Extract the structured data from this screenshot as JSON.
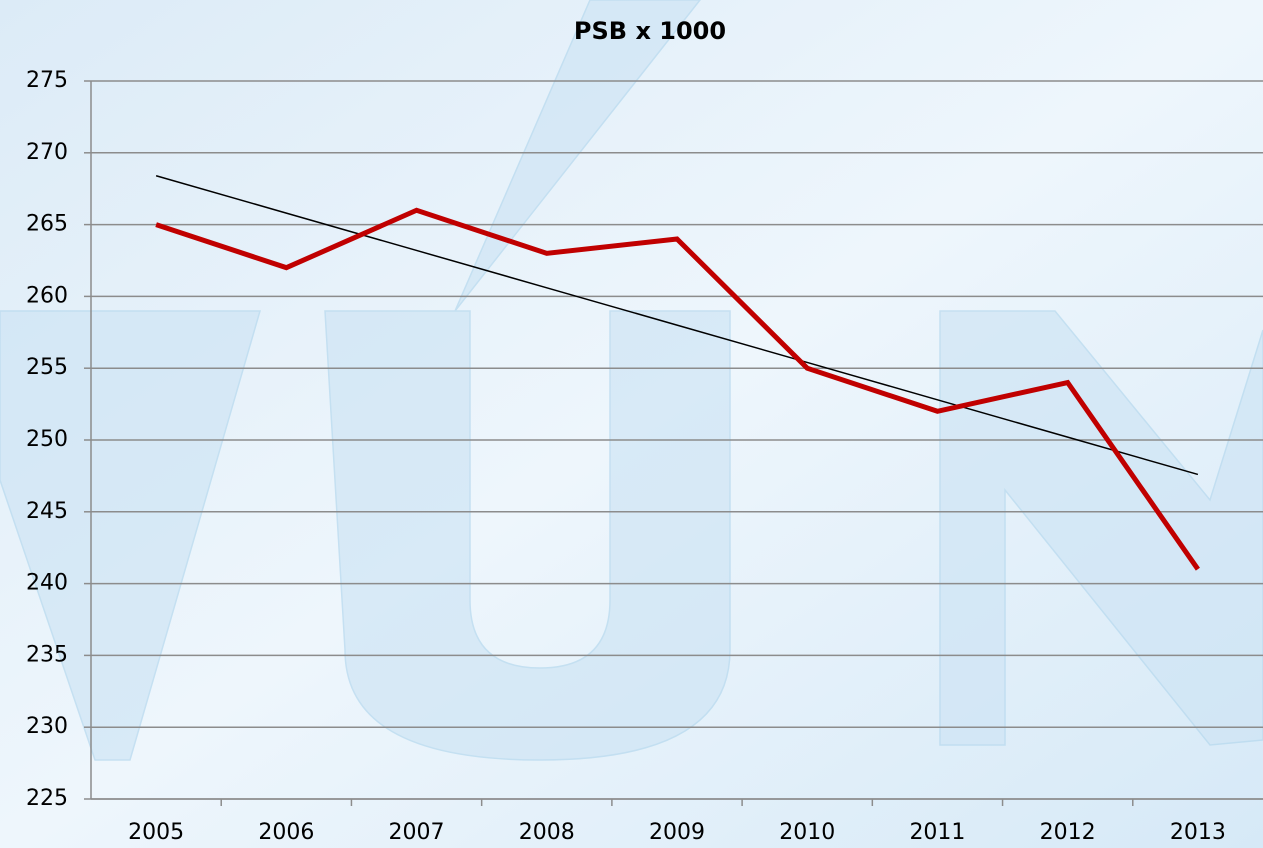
{
  "chart_data": {
    "type": "line",
    "title": "PSB x 1000",
    "categories": [
      "2005",
      "2006",
      "2007",
      "2008",
      "2009",
      "2010",
      "2011",
      "2012",
      "2013"
    ],
    "series": [
      {
        "color": "#c00000",
        "values": [
          265,
          262,
          266,
          263,
          264,
          255,
          252,
          254,
          241
        ]
      }
    ],
    "trendline": {
      "color": "#000000",
      "values": [
        268.4,
        265.8,
        263.2,
        260.6,
        258,
        255.4,
        252.8,
        250.2,
        247.6
      ]
    },
    "ylim": [
      225,
      275
    ],
    "yticks": [
      225,
      230,
      235,
      240,
      245,
      250,
      255,
      260,
      265,
      270,
      275
    ],
    "grid": true
  }
}
